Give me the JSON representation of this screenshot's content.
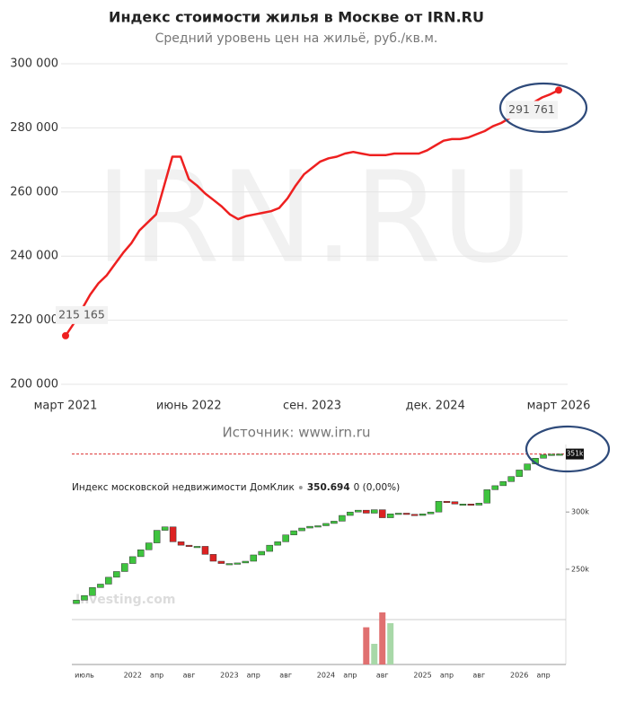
{
  "chart_data": [
    {
      "type": "line",
      "title": "Индекс стоимости жилья в Москве от IRN.RU",
      "subtitle": "Средний уровень цен на жильё, руб./кв.м.",
      "watermark": "IRN.RU",
      "source": "Источник: www.irn.ru",
      "color": "#ee2020",
      "grid": true,
      "ylim": [
        200000,
        300000
      ],
      "yticks": [
        {
          "value": 200000,
          "label": "200 000"
        },
        {
          "value": 220000,
          "label": "220 000"
        },
        {
          "value": 240000,
          "label": "240 000"
        },
        {
          "value": 260000,
          "label": "260 000"
        },
        {
          "value": 280000,
          "label": "280 000"
        },
        {
          "value": 300000,
          "label": "300 000"
        }
      ],
      "categories": [
        "март 2021",
        null,
        null,
        null,
        null,
        null,
        null,
        null,
        null,
        null,
        null,
        null,
        null,
        null,
        null,
        "июнь 2022",
        null,
        null,
        null,
        null,
        null,
        null,
        null,
        null,
        null,
        null,
        null,
        null,
        null,
        null,
        "сен. 2023",
        null,
        null,
        null,
        null,
        null,
        null,
        null,
        null,
        null,
        null,
        null,
        null,
        null,
        null,
        "дек. 2024",
        null,
        null,
        null,
        null,
        null,
        null,
        null,
        null,
        null,
        null,
        null,
        null,
        null,
        null,
        "март 2026"
      ],
      "values": [
        215165,
        219000,
        223500,
        228000,
        231500,
        234000,
        237500,
        241000,
        244000,
        248000,
        250500,
        253000,
        262000,
        271000,
        271000,
        264000,
        262000,
        259500,
        257500,
        255500,
        253000,
        251500,
        252500,
        253000,
        253500,
        254000,
        255000,
        258000,
        262000,
        265500,
        267500,
        269500,
        270500,
        271000,
        272000,
        272500,
        272000,
        271500,
        271500,
        271500,
        272000,
        272000,
        272000,
        272000,
        273000,
        274500,
        276000,
        276500,
        276500,
        277000,
        278000,
        279000,
        280500,
        281500,
        283000,
        285000,
        286500,
        288000,
        289500,
        290500,
        291761
      ],
      "value_labels": [
        "215 165",
        null,
        null,
        null,
        null,
        null,
        null,
        null,
        null,
        null,
        null,
        null,
        null,
        null,
        null,
        null,
        null,
        null,
        null,
        null,
        null,
        null,
        null,
        null,
        null,
        null,
        null,
        null,
        null,
        null,
        null,
        null,
        null,
        null,
        null,
        null,
        null,
        null,
        null,
        null,
        null,
        null,
        null,
        null,
        null,
        null,
        null,
        null,
        null,
        null,
        null,
        null,
        null,
        null,
        null,
        null,
        null,
        null,
        null,
        null,
        "291 761"
      ]
    },
    {
      "type": "candlestick",
      "title": "Индекс московской недвижимости ДомКлик",
      "last_value": 350.694,
      "change": "0 (0,00%)",
      "price_label": "351k",
      "watermark": "Investing.com",
      "up_color": "#3ec43e",
      "down_color": "#dd2222",
      "ylim": [
        206,
        359
      ],
      "yticks": [
        {
          "value": 250,
          "label": "250k"
        },
        {
          "value": 300,
          "label": "300k"
        }
      ],
      "categories": [
        null,
        "июль",
        null,
        null,
        null,
        null,
        null,
        "2022",
        null,
        null,
        "апр",
        null,
        null,
        null,
        "авг",
        null,
        null,
        null,
        null,
        "2023",
        null,
        null,
        "апр",
        null,
        null,
        null,
        "авг",
        null,
        null,
        null,
        null,
        "2024",
        null,
        null,
        "апр",
        null,
        null,
        null,
        "авг",
        null,
        null,
        null,
        null,
        "2025",
        null,
        null,
        "апр",
        null,
        null,
        null,
        "авг",
        null,
        null,
        null,
        null,
        "2026",
        null,
        null,
        "апр",
        null,
        null
      ],
      "open": [
        220,
        223,
        227,
        234,
        237,
        243,
        248,
        255,
        261,
        267,
        273,
        284,
        287,
        274,
        271,
        270,
        270,
        263,
        257,
        255,
        255,
        255.5,
        257,
        262.5,
        265.6,
        271,
        274,
        280,
        283.6,
        286,
        287.5,
        288,
        290,
        292,
        297,
        300,
        301.6,
        299,
        302,
        295,
        298.4,
        299,
        298,
        297,
        298.4,
        300,
        309.4,
        309,
        307,
        307,
        306,
        307.8,
        319.5,
        323,
        326.6,
        331,
        336.7,
        342,
        347,
        350,
        350.5
      ],
      "close": [
        223,
        227,
        234,
        237,
        243,
        248,
        255,
        261,
        267,
        273,
        284,
        287,
        274,
        271,
        270,
        270,
        263,
        257,
        255,
        255,
        255.5,
        257,
        262.5,
        265.6,
        271,
        274,
        280,
        283.6,
        286,
        287.5,
        288,
        290,
        292,
        297,
        300,
        301.6,
        299,
        302,
        295,
        298.4,
        299,
        298,
        297,
        298.4,
        300,
        309.4,
        309,
        307,
        307,
        306,
        307.8,
        319.5,
        323,
        326.6,
        331,
        336.7,
        342,
        347,
        350,
        350.5,
        350.694
      ],
      "volume": [
        null,
        null,
        null,
        null,
        null,
        null,
        null,
        null,
        null,
        null,
        null,
        null,
        null,
        null,
        null,
        null,
        null,
        null,
        null,
        null,
        null,
        null,
        null,
        null,
        null,
        null,
        null,
        null,
        null,
        null,
        null,
        null,
        null,
        null,
        null,
        null,
        45,
        25,
        63,
        50,
        null,
        null,
        null,
        null,
        null,
        null,
        null,
        null,
        null,
        null,
        null,
        null,
        null,
        null,
        null,
        null,
        null,
        null,
        null,
        null,
        null
      ]
    }
  ]
}
